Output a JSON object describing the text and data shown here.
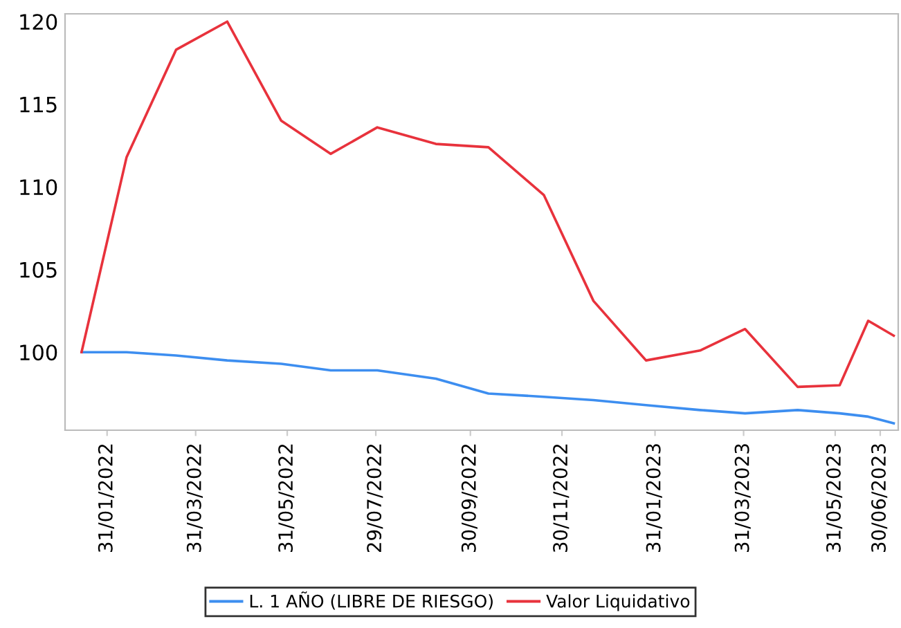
{
  "chart_data": {
    "type": "line",
    "x": [
      "2022-01-14",
      "2022-02-13",
      "2022-03-18",
      "2022-04-21",
      "2022-05-27",
      "2022-06-29",
      "2022-07-30",
      "2022-09-07",
      "2022-10-12",
      "2022-11-18",
      "2022-12-21",
      "2023-01-25",
      "2023-03-02",
      "2023-04-01",
      "2023-05-06",
      "2023-06-03",
      "2023-06-22",
      "2023-07-09"
    ],
    "series": [
      {
        "name": "L. 1 AÑO (LIBRE DE RIESGO)",
        "color": "#3d8ef0",
        "values": [
          100,
          100,
          99.8,
          99.5,
          99.3,
          98.9,
          98.9,
          98.4,
          97.5,
          97.3,
          97.1,
          96.8,
          96.5,
          96.3,
          96.5,
          96.3,
          96.1,
          95.7
        ]
      },
      {
        "name": "Valor Liquidativo",
        "color": "#e8323c",
        "values": [
          100,
          111.8,
          118.3,
          120,
          114.0,
          112.0,
          113.6,
          112.6,
          112.4,
          109.5,
          103.1,
          99.5,
          100.1,
          101.4,
          97.9,
          98.0,
          101.9,
          101.0
        ]
      }
    ],
    "xlim": [
      "2022-01-03",
      "2023-07-12"
    ],
    "xticks": [
      {
        "value": "2022-01-31",
        "label": "31/01/2022"
      },
      {
        "value": "2022-03-31",
        "label": "31/03/2022"
      },
      {
        "value": "2022-05-31",
        "label": "31/05/2022"
      },
      {
        "value": "2022-07-29",
        "label": "29/07/2022"
      },
      {
        "value": "2022-09-30",
        "label": "30/09/2022"
      },
      {
        "value": "2022-11-30",
        "label": "30/11/2022"
      },
      {
        "value": "2023-01-31",
        "label": "31/01/2023"
      },
      {
        "value": "2023-03-31",
        "label": "31/03/2023"
      },
      {
        "value": "2023-05-31",
        "label": "31/05/2023"
      },
      {
        "value": "2023-06-30",
        "label": "30/06/2023"
      }
    ],
    "ylim": [
      95.28,
      120.47
    ],
    "yticks": [
      100,
      105,
      110,
      115,
      120
    ],
    "grid": false,
    "legend": "bottom",
    "marker": "none",
    "line_style": "solid"
  }
}
